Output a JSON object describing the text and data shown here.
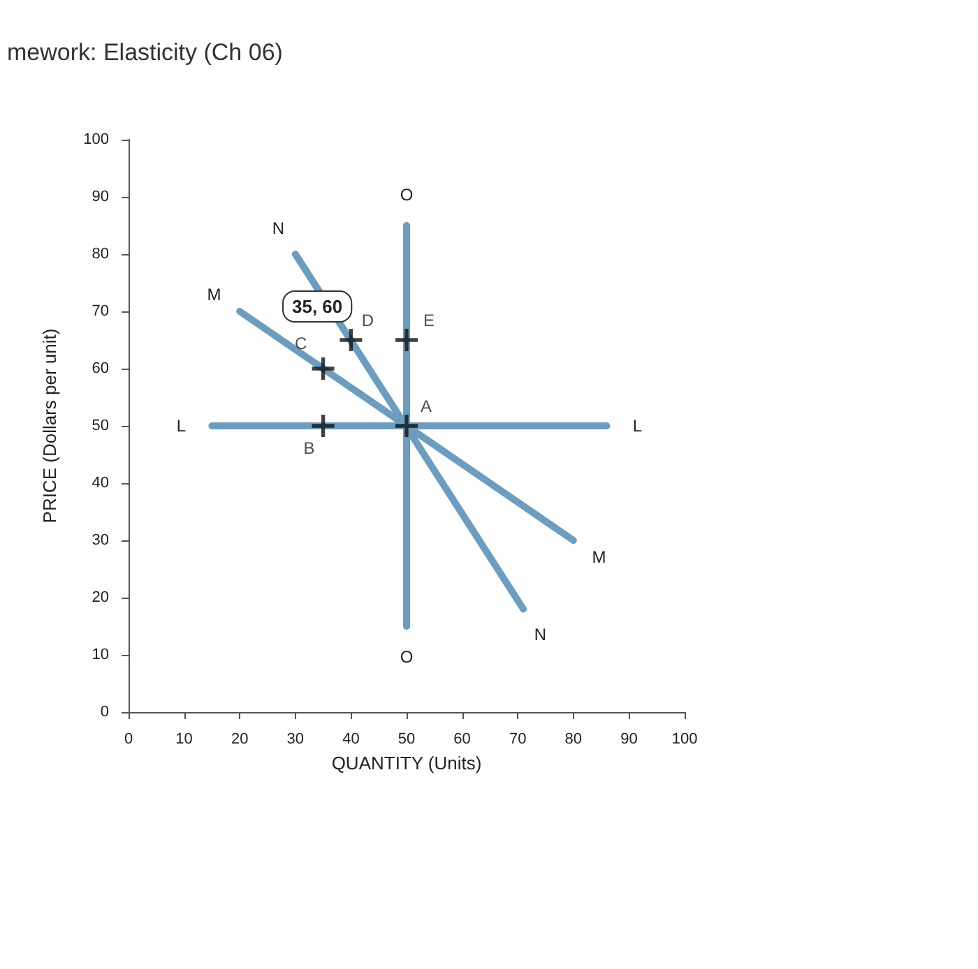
{
  "chart_data": {
    "type": "line",
    "title": "mework: Elasticity (Ch 06)",
    "xlabel": "QUANTITY (Units)",
    "ylabel": "PRICE (Dollars per unit)",
    "xlim": [
      0,
      100
    ],
    "ylim": [
      0,
      100
    ],
    "xticks": [
      0,
      10,
      20,
      30,
      40,
      50,
      60,
      70,
      80,
      90,
      100
    ],
    "yticks": [
      0,
      10,
      20,
      30,
      40,
      50,
      60,
      70,
      80,
      90,
      100
    ],
    "grid": false,
    "legend": false,
    "line_style": "solid",
    "series": [
      {
        "name": "L",
        "color": "#6b9dc0",
        "x": [
          15,
          86
        ],
        "values": [
          50,
          50
        ]
      },
      {
        "name": "M",
        "color": "#6b9dc0",
        "x": [
          20,
          80
        ],
        "values": [
          70,
          30
        ]
      },
      {
        "name": "N",
        "color": "#6b9dc0",
        "x": [
          30,
          71
        ],
        "values": [
          80,
          18
        ]
      },
      {
        "name": "O",
        "color": "#6b9dc0",
        "x": [
          50,
          50
        ],
        "values": [
          85,
          15
        ]
      },
      {
        "type": "scatter",
        "marker": "cross",
        "color": "#111111",
        "x": [
          50,
          35,
          35,
          40,
          50
        ],
        "values": [
          50,
          50,
          60,
          65,
          65
        ]
      }
    ],
    "annotations": [
      {
        "text": "A",
        "x": 50,
        "y": 50
      },
      {
        "text": "B",
        "x": 35,
        "y": 50
      },
      {
        "text": "C",
        "x": 35,
        "y": 60
      },
      {
        "text": "D",
        "x": 40,
        "y": 65
      },
      {
        "text": "E",
        "x": 50,
        "y": 65
      },
      "35, 60"
    ]
  }
}
